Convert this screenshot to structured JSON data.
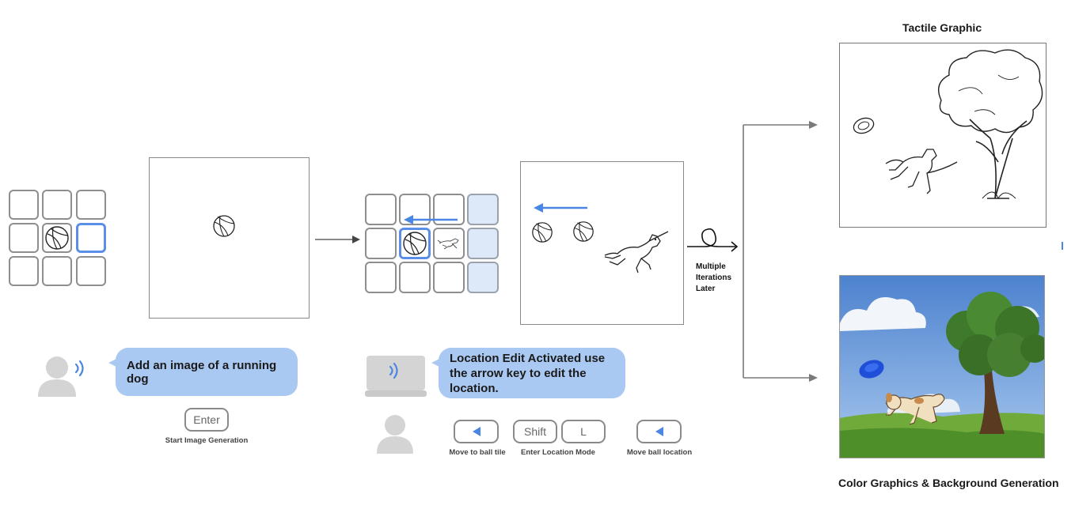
{
  "step1": {
    "prompt": "Add an image of a running dog",
    "key": "Enter",
    "key_caption": "Start Image Generation"
  },
  "step2": {
    "prompt": "Location Edit Activated use the arrow key to edit the location.",
    "keys": [
      {
        "label": "",
        "icon": "left-arrow-icon",
        "caption": "Move to ball tile"
      },
      {
        "label": "Shift",
        "icon": "",
        "caption": "Enter Location Mode"
      },
      {
        "label": "L",
        "icon": "",
        "caption": ""
      },
      {
        "label": "",
        "icon": "left-arrow-icon",
        "caption": "Move ball location"
      }
    ]
  },
  "iterations": {
    "text_lines": [
      "Multiple",
      "Iterations",
      "Later"
    ]
  },
  "outputs": {
    "tactile_title": "Tactile Graphic",
    "color_title": "Color Graphics & Background Generation"
  },
  "colors": {
    "accent": "#4a86e3",
    "bubble": "#aac9f2",
    "highlight_tile": "#dde9f8",
    "person_icon": "#d4d4d4",
    "grass": "#6faa3a",
    "sky": "#5a8fd6"
  }
}
